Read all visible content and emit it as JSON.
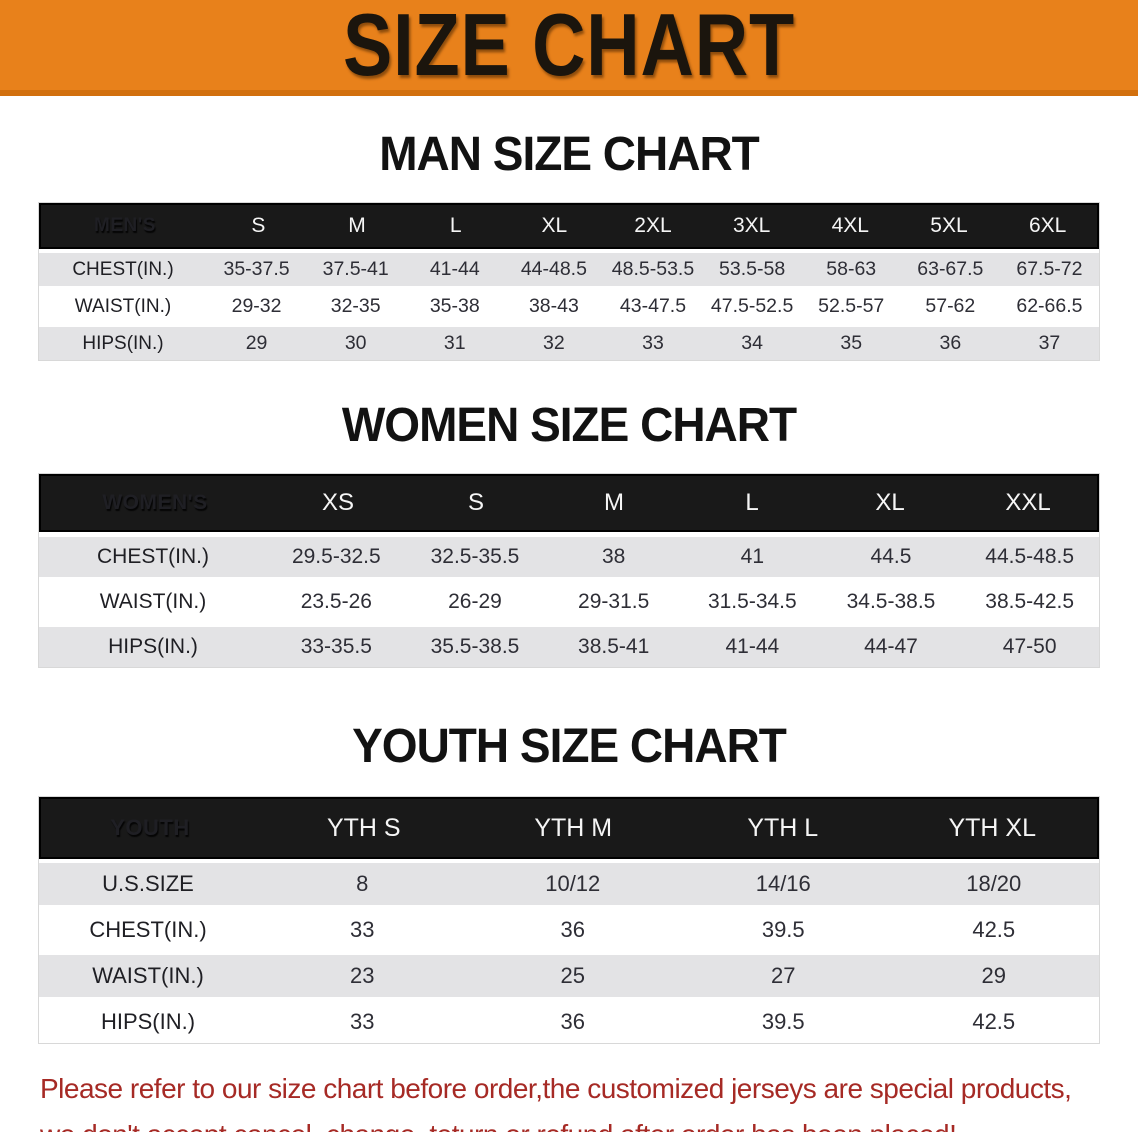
{
  "colors": {
    "banner-bg": "#E8811B",
    "banner-edge": "#D2700E",
    "banner-text": "#1B150D",
    "band-bg": "#191919",
    "shade-bg": "#E3E3E5",
    "disclaimer-color": "#A62A25"
  },
  "banner": {
    "title": "SIZE CHART"
  },
  "men": {
    "heading": "MAN SIZE CHART",
    "label": "MEN'S",
    "sizes": [
      "S",
      "M",
      "L",
      "XL",
      "2XL",
      "3XL",
      "4XL",
      "5XL",
      "6XL"
    ],
    "rows": [
      {
        "label": "CHEST(IN.)",
        "values": [
          "35-37.5",
          "37.5-41",
          "41-44",
          "44-48.5",
          "48.5-53.5",
          "53.5-58",
          "58-63",
          "63-67.5",
          "67.5-72"
        ]
      },
      {
        "label": "WAIST(IN.)",
        "values": [
          "29-32",
          "32-35",
          "35-38",
          "38-43",
          "43-47.5",
          "47.5-52.5",
          "52.5-57",
          "57-62",
          "62-66.5"
        ]
      },
      {
        "label": "HIPS(IN.)",
        "values": [
          "29",
          "30",
          "31",
          "32",
          "33",
          "34",
          "35",
          "36",
          "37"
        ]
      }
    ]
  },
  "women": {
    "heading": "WOMEN SIZE CHART",
    "label": "WOMEN'S",
    "sizes": [
      "XS",
      "S",
      "M",
      "L",
      "XL",
      "XXL"
    ],
    "rows": [
      {
        "label": "CHEST(IN.)",
        "values": [
          "29.5-32.5",
          "32.5-35.5",
          "38",
          "41",
          "44.5",
          "44.5-48.5"
        ]
      },
      {
        "label": "WAIST(IN.)",
        "values": [
          "23.5-26",
          "26-29",
          "29-31.5",
          "31.5-34.5",
          "34.5-38.5",
          "38.5-42.5"
        ]
      },
      {
        "label": "HIPS(IN.)",
        "values": [
          "33-35.5",
          "35.5-38.5",
          "38.5-41",
          "41-44",
          "44-47",
          "47-50"
        ]
      }
    ]
  },
  "youth": {
    "heading": "YOUTH SIZE CHART",
    "label": "YOUTH",
    "sizes": [
      "YTH S",
      "YTH M",
      "YTH L",
      "YTH XL"
    ],
    "rows": [
      {
        "label": "U.S.SIZE",
        "values": [
          "8",
          "10/12",
          "14/16",
          "18/20"
        ]
      },
      {
        "label": "CHEST(IN.)",
        "values": [
          "33",
          "36",
          "39.5",
          "42.5"
        ]
      },
      {
        "label": "WAIST(IN.)",
        "values": [
          "23",
          "25",
          "27",
          "29"
        ]
      },
      {
        "label": "HIPS(IN.)",
        "values": [
          "33",
          "36",
          "39.5",
          "42.5"
        ]
      }
    ]
  },
  "disclaimer": {
    "line1": "Please refer to our size chart before order,the customized jerseys are special products,",
    "line2": "we don't accept cancel, change, teturn or refund after order has been placed!"
  }
}
